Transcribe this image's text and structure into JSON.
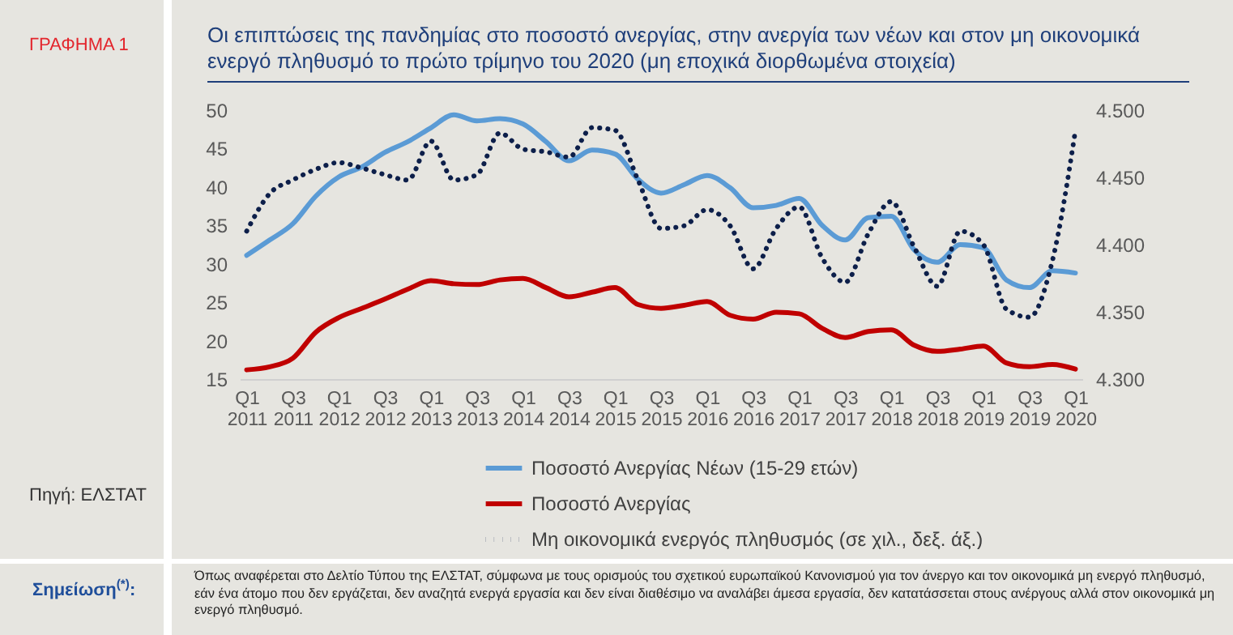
{
  "chart_data": {
    "type": "line",
    "title": "Οι επιπτώσεις της πανδημίας στο ποσοστό ανεργίας, στην ανεργία των νέων και στον μη οικονομικά ενεργό πληθυσμό το πρώτο τρίμηνο του 2020 (μη εποχικά διορθωμένα στοιχεία)",
    "annotations": [
      "ΓΡΑΦΗΜΑ 1",
      "Πηγή: ΕΛΣΤΑΤ",
      "Σημείωση$^{(*)}$:",
      "Όπως αναφέρεται στο Δελτίο Τύπου της ΕΛΣΤΑΤ, σύμφωνα με τους ορισμούς του σχετικού ευρωπαϊκού Κανονισμού για τον άνεργο και τον οικονομικά μη ενεργό πληθυσμό, εάν ένα άτομο που δεν εργάζεται, δεν αναζητά ενεργά εργασία και δεν είναι διαθέσιμο να αναλάβει άμεσα εργασία, δεν κατατάσσεται στους ανέργους αλλά στον οικονομικά μη ενεργό πληθυσμό."
    ],
    "categories": [
      "Q1 2011",
      null,
      "Q3 2011",
      null,
      "Q1 2012",
      null,
      "Q3 2012",
      null,
      "Q1 2013",
      null,
      "Q3 2013",
      null,
      "Q1 2014",
      null,
      "Q3 2014",
      null,
      "Q1 2015",
      null,
      "Q3 2015",
      null,
      "Q1 2016",
      null,
      "Q3 2016",
      null,
      "Q1 2017",
      null,
      "Q3 2017",
      null,
      "Q1 2018",
      null,
      "Q3 2018",
      null,
      "Q1 2019",
      null,
      "Q3 2019",
      null,
      "Q1 2020"
    ],
    "series": [
      {
        "name": "Ποσοστό Ανεργίας  Νέων (15-29 ετών)",
        "color": "#5b9bd5",
        "line_style": "solid",
        "values": [
          31.1,
          33.1,
          35.2,
          38.8,
          41.3,
          42.6,
          44.5,
          45.9,
          47.7,
          49.4,
          48.6,
          48.9,
          48.2,
          45.9,
          43.4,
          44.8,
          44.3,
          41.0,
          39.2,
          40.3,
          41.5,
          39.9,
          37.3,
          37.6,
          38.5,
          35.0,
          33.1,
          36.0,
          36.2,
          31.8,
          30.2,
          32.5,
          32.1,
          27.9,
          26.9,
          29.1,
          28.8
        ]
      },
      {
        "name": "Ποσοστό Ανεργίας",
        "color": "#c00000",
        "line_style": "solid",
        "values": [
          16.2,
          16.6,
          17.7,
          21.1,
          23.0,
          24.2,
          25.4,
          26.7,
          27.8,
          27.4,
          27.3,
          27.9,
          28.1,
          26.9,
          25.7,
          26.3,
          26.9,
          24.7,
          24.2,
          24.6,
          25.1,
          23.3,
          22.8,
          23.7,
          23.5,
          21.6,
          20.4,
          21.2,
          21.4,
          19.4,
          18.6,
          18.9,
          19.3,
          17.1,
          16.6,
          16.9,
          16.3
        ]
      },
      {
        "name": "Μη οικονομικά ενεργός πληθυσμός (σε χιλ., δεξ. άξ.)",
        "color": "#0d1f4a",
        "line_style": "dotted",
        "axis": "y2",
        "values": [
          4410,
          4438,
          4448,
          4456,
          4461,
          4457,
          4452,
          4448,
          4477,
          4448,
          4452,
          4483,
          4471,
          4469,
          4465,
          4487,
          4485,
          4448,
          4412,
          4414,
          4426,
          4414,
          4382,
          4412,
          4428,
          4390,
          4372,
          4408,
          4432,
          4398,
          4369,
          4410,
          4400,
          4352,
          4346,
          4388,
          4485
        ]
      }
    ],
    "ylim": [
      15,
      50
    ],
    "yticks": [
      15,
      20,
      25,
      30,
      35,
      40,
      45,
      50
    ],
    "y2lim": [
      4300,
      4500
    ],
    "y2ticks": [
      {
        "value": 4300,
        "label": "4.300"
      },
      {
        "value": 4350,
        "label": "4.350"
      },
      {
        "value": 4400,
        "label": "4.400"
      },
      {
        "value": 4450,
        "label": "4.450"
      },
      {
        "value": 4500,
        "label": "4.500"
      }
    ],
    "legend": "bottom"
  }
}
